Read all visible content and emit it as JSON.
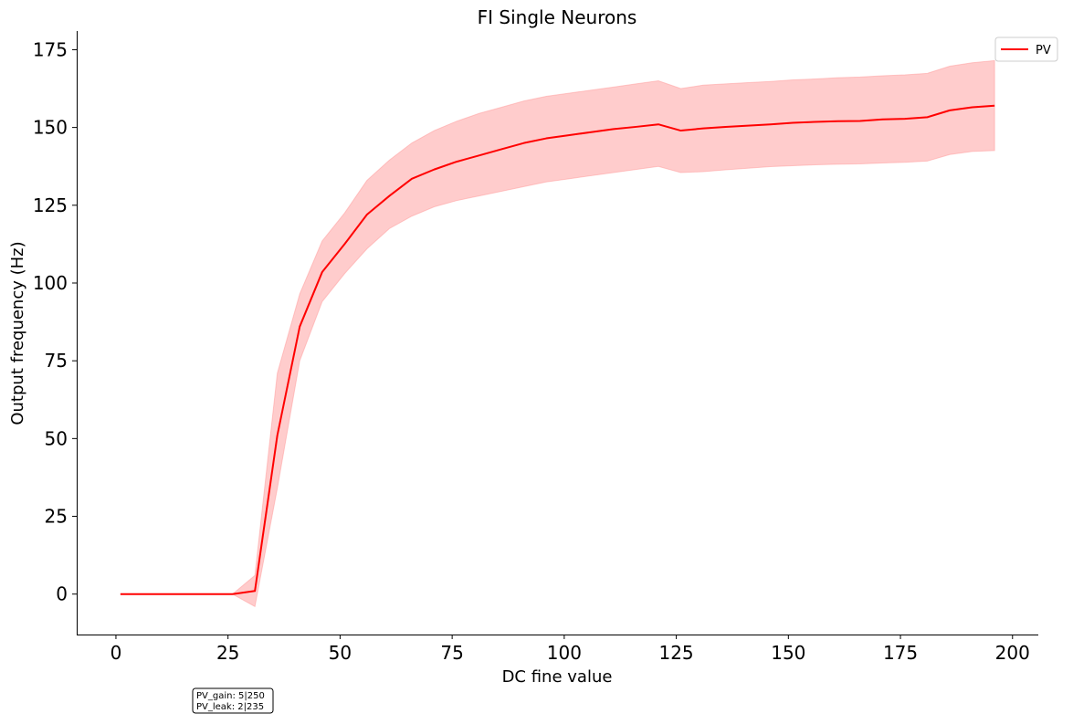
{
  "chart_data": {
    "type": "line",
    "title": "FI Single Neurons",
    "xlabel": "DC fine value",
    "ylabel": "Output frequency (Hz)",
    "xlim": [
      -8.75,
      205.75
    ],
    "ylim": [
      -13,
      181
    ],
    "xticks": [
      0,
      25,
      50,
      75,
      100,
      125,
      150,
      175,
      200
    ],
    "yticks": [
      0,
      25,
      50,
      75,
      100,
      125,
      150,
      175
    ],
    "xtick_labels": [
      "0",
      "25",
      "50",
      "75",
      "100",
      "125",
      "150",
      "175",
      "200"
    ],
    "ytick_labels": [
      "0",
      "25",
      "50",
      "75",
      "100",
      "125",
      "150",
      "175"
    ],
    "grid": false,
    "legend_position": "top-right",
    "series": [
      {
        "name": "PV",
        "color": "#ff0000",
        "band_color": "#ff9999",
        "x": [
          1,
          6,
          11,
          16,
          21,
          26,
          31,
          36,
          41,
          46,
          51,
          56,
          61,
          66,
          71,
          76,
          81,
          86,
          91,
          96,
          101,
          106,
          111,
          116,
          121,
          126,
          131,
          136,
          141,
          146,
          151,
          156,
          161,
          166,
          171,
          176,
          181,
          186,
          191,
          196
        ],
        "y": [
          0,
          0,
          0,
          0,
          0,
          0,
          1,
          51,
          86,
          103.5,
          112.5,
          122,
          128,
          133.5,
          136.5,
          139,
          141,
          143,
          145,
          146.5,
          147.5,
          148.5,
          149.5,
          150.2,
          151,
          149,
          149.7,
          150.2,
          150.6,
          151,
          151.5,
          151.8,
          152,
          152.1,
          152.6,
          152.8,
          153.3,
          155.5,
          156.5,
          157
        ],
        "lower": [
          0,
          0,
          0,
          0,
          0,
          0,
          -4,
          34,
          75,
          94,
          103,
          111,
          117.5,
          121.5,
          124.5,
          126.5,
          128,
          129.5,
          131,
          132.5,
          133.5,
          134.5,
          135.5,
          136.5,
          137.5,
          135.5,
          135.8,
          136.4,
          136.9,
          137.4,
          137.7,
          138,
          138.2,
          138.3,
          138.6,
          138.8,
          139.2,
          141.3,
          142.3,
          142.6
        ],
        "upper": [
          0,
          0,
          0,
          0,
          0,
          0,
          6,
          71,
          96.5,
          113.5,
          122.5,
          133,
          139.5,
          145,
          149,
          152,
          154.5,
          156.5,
          158.5,
          160,
          161,
          162,
          163,
          164,
          165,
          162.5,
          163.6,
          164,
          164.4,
          164.8,
          165.3,
          165.6,
          166,
          166.2,
          166.6,
          166.9,
          167.4,
          169.7,
          170.8,
          171.5
        ]
      }
    ]
  },
  "annotation": {
    "lines": [
      "PV_gain: 5|250",
      "PV_leak: 2|235"
    ]
  }
}
